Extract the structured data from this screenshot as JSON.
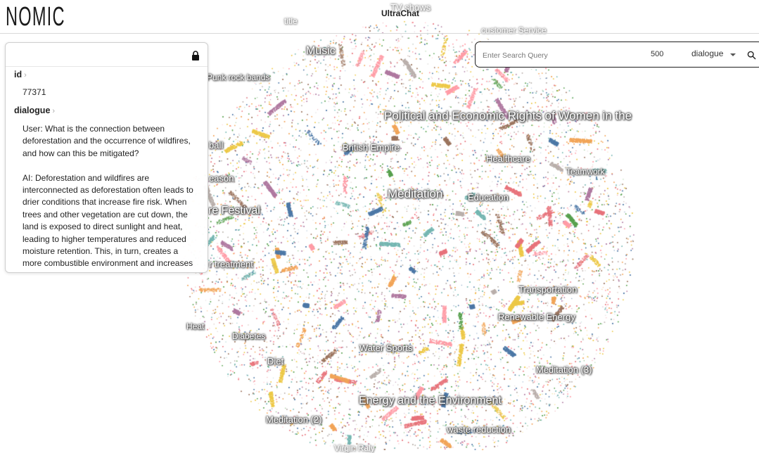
{
  "header": {
    "logo_text": "NOMIC",
    "title": "UltraChat"
  },
  "map": {
    "topics": [
      {
        "text": "TV shows",
        "faint": true
      },
      {
        "text": "title",
        "faint": true
      },
      {
        "text": "customer Service",
        "faint": true
      },
      {
        "text": "Music"
      },
      {
        "text": "Punk rock bands"
      },
      {
        "text": "Political and Economic Rights of Women in the"
      },
      {
        "text": "ball"
      },
      {
        "text": "British Empire"
      },
      {
        "text": "Healthcare"
      },
      {
        "text": "Teamwork"
      },
      {
        "text": "eason"
      },
      {
        "text": "Meditation"
      },
      {
        "text": "Education"
      },
      {
        "text": "re Festival"
      },
      {
        "text": "r treatment"
      },
      {
        "text": "Transportation"
      },
      {
        "text": "Renewable Energy"
      },
      {
        "text": "Heat"
      },
      {
        "text": "Diabetes"
      },
      {
        "text": "Water Sports"
      },
      {
        "text": "Diet"
      },
      {
        "text": "Meditation (3)"
      },
      {
        "text": "Energy and the Environment"
      },
      {
        "text": "Meditation (2)"
      },
      {
        "text": "waste reduction"
      },
      {
        "text": "Virgin Raly",
        "faint": true
      }
    ]
  },
  "detail": {
    "id_key": "id",
    "id_value": "77371",
    "dialogue_key": "dialogue",
    "dialogue_value": "User: What is the connection between deforestation and the occurrence of wildfires, and how can this be mitigated?\n\nAI: Deforestation and wildfires are interconnected as deforestation often leads to drier conditions that increase fire risk. When trees and other vegetation are cut down, the land is exposed to direct sunlight and heat, leading to higher temperatures and reduced moisture retention. This, in turn, creates a more combustible environment and increases"
  },
  "search": {
    "placeholder": "Enter Search Query",
    "count": "500",
    "field": "dialogue"
  },
  "colors": {
    "point_palette": [
      "#e8747c",
      "#f2a65a",
      "#4e79a7",
      "#59a14f",
      "#edc948",
      "#b07aa1",
      "#76b7b2",
      "#ff9da7",
      "#9c755f",
      "#bab0ac"
    ]
  }
}
